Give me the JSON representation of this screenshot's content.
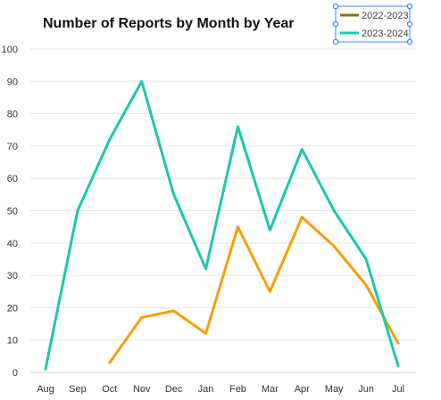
{
  "chart_data": {
    "type": "line",
    "title": "Number of Reports by Month by Year",
    "xlabel": "",
    "ylabel": "",
    "categories": [
      "Aug",
      "Sep",
      "Oct",
      "Nov",
      "Dec",
      "Jan",
      "Feb",
      "Mar",
      "Apr",
      "May",
      "Jun",
      "Jul"
    ],
    "ylim": [
      0,
      100
    ],
    "yticks": [
      0,
      10,
      20,
      30,
      40,
      50,
      60,
      70,
      80,
      90,
      100
    ],
    "grid": true,
    "legend_position": "top-right",
    "series": [
      {
        "name": "2022-2023",
        "legend_color": "#8B7300",
        "color": "#F59E0B",
        "values": [
          null,
          null,
          3,
          17,
          19,
          12,
          45,
          25,
          48,
          39,
          27,
          9
        ]
      },
      {
        "name": "2023-2024",
        "legend_color": "#1CC7B1",
        "color": "#1CC7B1",
        "values": [
          1,
          50,
          72,
          90,
          55,
          32,
          76,
          44,
          69,
          50,
          35,
          2
        ]
      }
    ]
  }
}
